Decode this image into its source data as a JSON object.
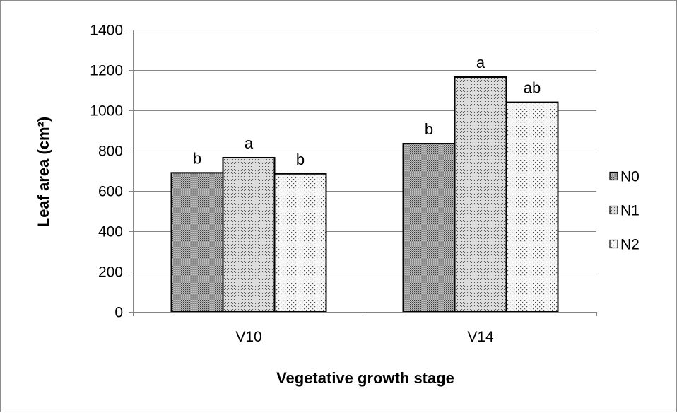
{
  "chart_data": {
    "type": "bar",
    "categories": [
      "V10",
      "V14"
    ],
    "series": [
      {
        "name": "N0",
        "values": [
          690,
          835
        ],
        "labels": [
          "b",
          "b"
        ],
        "pattern": "dense-dots"
      },
      {
        "name": "N1",
        "values": [
          765,
          1165
        ],
        "labels": [
          "a",
          "a"
        ],
        "pattern": "fine-dots"
      },
      {
        "name": "N2",
        "values": [
          685,
          1040
        ],
        "labels": [
          "b",
          "ab"
        ],
        "pattern": "sparse-dots"
      }
    ],
    "xlabel": "Vegetative growth stage",
    "ylabel": "Leaf area (cm²)",
    "ylim": [
      0,
      1400
    ],
    "yticks": [
      "0",
      "200",
      "400",
      "600",
      "800",
      "1000",
      "1200",
      "1400"
    ],
    "grid": "horizontal",
    "legend": "right",
    "colors": {
      "N0": "#c8c8c8",
      "N1": "#d9d9d9",
      "N2": "#f2f2f2",
      "dots": "#404040",
      "grid": "#868686",
      "border": "#000000"
    }
  }
}
